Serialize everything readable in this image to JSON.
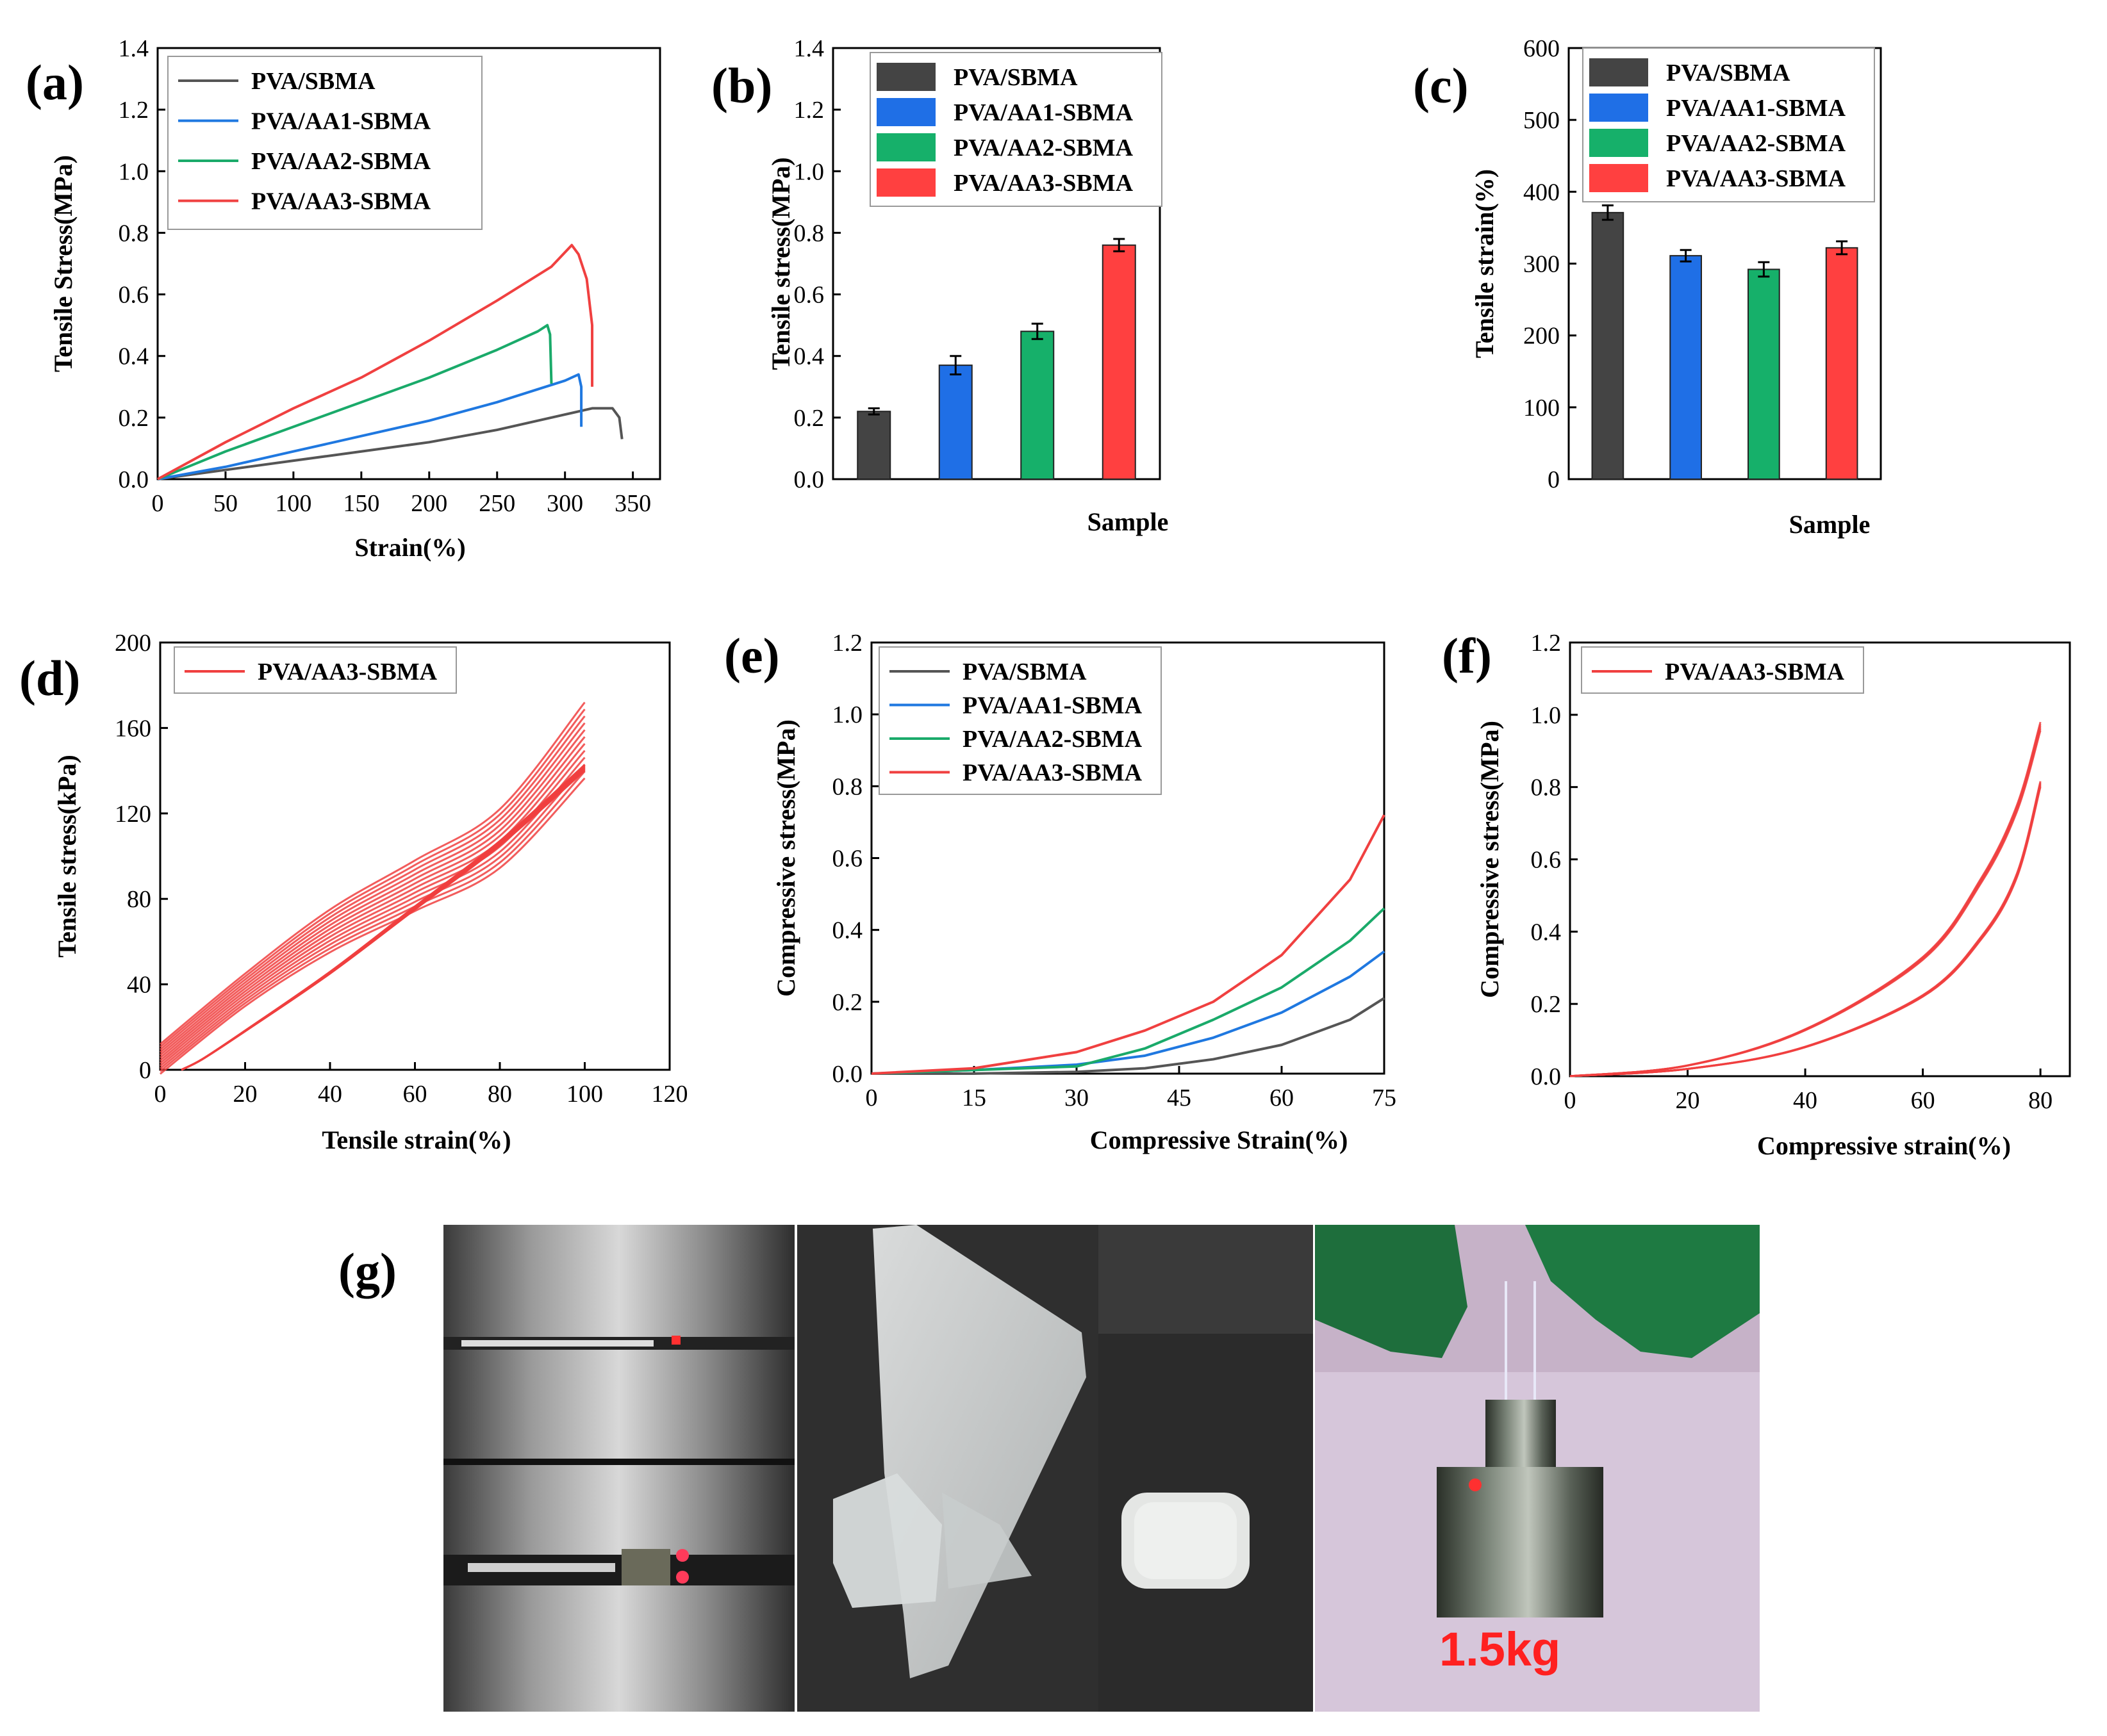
{
  "colors": {
    "black": "#555555",
    "blue": "#1f78e0",
    "green": "#1aaa6a",
    "red": "#f04040",
    "bar_black": "#444444",
    "bar_blue": "#1f6fe6",
    "bar_green": "#16b06a",
    "bar_red": "#ff4040"
  },
  "series_names": [
    "PVA/SBMA",
    "PVA/AA1-SBMA",
    "PVA/AA2-SBMA",
    "PVA/AA3-SBMA"
  ],
  "chart_data": [
    {
      "id": "a",
      "panel_label": "(a)",
      "type": "line",
      "xlabel": "Strain(%)",
      "ylabel": "Tensile Stress(MPa)",
      "xlim": [
        0,
        370
      ],
      "ylim": [
        0,
        1.4
      ],
      "xticks": [
        "0",
        "50",
        "100",
        "150",
        "200",
        "250",
        "300",
        "350"
      ],
      "yticks": [
        "0.0",
        "0.2",
        "0.4",
        "0.6",
        "0.8",
        "1.0",
        "1.2",
        "1.4"
      ],
      "legend": [
        "PVA/SBMA",
        "PVA/AA1-SBMA",
        "PVA/AA2-SBMA",
        "PVA/AA3-SBMA"
      ],
      "series": [
        {
          "name": "PVA/SBMA",
          "x": [
            0,
            50,
            100,
            150,
            200,
            250,
            300,
            320,
            335,
            340,
            342
          ],
          "y": [
            0,
            0.03,
            0.06,
            0.09,
            0.12,
            0.16,
            0.21,
            0.23,
            0.23,
            0.2,
            0.13
          ]
        },
        {
          "name": "PVA/AA1-SBMA",
          "x": [
            0,
            50,
            100,
            150,
            200,
            250,
            300,
            310,
            312,
            312
          ],
          "y": [
            0,
            0.04,
            0.09,
            0.14,
            0.19,
            0.25,
            0.32,
            0.34,
            0.3,
            0.17
          ]
        },
        {
          "name": "PVA/AA2-SBMA",
          "x": [
            0,
            50,
            100,
            150,
            200,
            250,
            280,
            287,
            289,
            290
          ],
          "y": [
            0,
            0.09,
            0.17,
            0.25,
            0.33,
            0.42,
            0.48,
            0.5,
            0.47,
            0.31
          ]
        },
        {
          "name": "PVA/AA3-SBMA",
          "x": [
            0,
            50,
            100,
            150,
            200,
            250,
            290,
            305,
            310,
            316,
            320,
            320
          ],
          "y": [
            0,
            0.12,
            0.23,
            0.33,
            0.45,
            0.58,
            0.69,
            0.76,
            0.73,
            0.65,
            0.5,
            0.3
          ]
        }
      ]
    },
    {
      "id": "b",
      "panel_label": "(b)",
      "type": "bar",
      "xlabel": "Sample",
      "ylabel": "Tensile stress(MPa)",
      "ylim": [
        0,
        1.4
      ],
      "yticks": [
        "0.0",
        "0.2",
        "0.4",
        "0.6",
        "0.8",
        "1.0",
        "1.2",
        "1.4"
      ],
      "categories": [
        "PVA/SBMA",
        "PVA/AA1-SBMA",
        "PVA/AA2-SBMA",
        "PVA/AA3-SBMA"
      ],
      "values": [
        0.22,
        0.37,
        0.48,
        0.76
      ],
      "errors": [
        0.01,
        0.03,
        0.025,
        0.02
      ]
    },
    {
      "id": "c",
      "panel_label": "(c)",
      "type": "bar",
      "xlabel": "Sample",
      "ylabel": "Tensile strain(%)",
      "ylim": [
        0,
        600
      ],
      "yticks": [
        "0",
        "100",
        "200",
        "300",
        "400",
        "500",
        "600"
      ],
      "categories": [
        "PVA/SBMA",
        "PVA/AA1-SBMA",
        "PVA/AA2-SBMA",
        "PVA/AA3-SBMA"
      ],
      "values": [
        371,
        311,
        292,
        322
      ],
      "errors": [
        10,
        8,
        10,
        9
      ]
    },
    {
      "id": "d",
      "panel_label": "(d)",
      "type": "line",
      "xlabel": "Tensile strain(%)",
      "ylabel": "Tensile stress(kPa)",
      "xlim": [
        0,
        120
      ],
      "ylim": [
        0,
        200
      ],
      "xticks": [
        "0",
        "20",
        "40",
        "60",
        "80",
        "100",
        "120"
      ],
      "yticks": [
        "0",
        "40",
        "80",
        "120",
        "160",
        "200"
      ],
      "legend": [
        "PVA/AA3-SBMA"
      ],
      "series": [
        {
          "name": "PVA/AA3-SBMA",
          "loading": {
            "x": [
              0,
              20,
              40,
              60,
              80,
              100
            ],
            "y": [
              12,
              45,
              75,
              98,
              122,
              172
            ]
          },
          "unloading": {
            "x": [
              100,
              80,
              60,
              40,
              20,
              10,
              5
            ],
            "y": [
              140,
              105,
              75,
              45,
              18,
              5,
              0
            ]
          },
          "cycles": 12
        }
      ]
    },
    {
      "id": "e",
      "panel_label": "(e)",
      "type": "line",
      "xlabel": "Compressive Strain(%)",
      "ylabel": "Compressive stress(MPa)",
      "xlim": [
        0,
        75
      ],
      "ylim": [
        0,
        1.2
      ],
      "xticks": [
        "0",
        "15",
        "30",
        "45",
        "60",
        "75"
      ],
      "yticks": [
        "0.0",
        "0.2",
        "0.4",
        "0.6",
        "0.8",
        "1.0",
        "1.2"
      ],
      "legend": [
        "PVA/SBMA",
        "PVA/AA1-SBMA",
        "PVA/AA2-SBMA",
        "PVA/AA3-SBMA"
      ],
      "series": [
        {
          "name": "PVA/SBMA",
          "x": [
            0,
            15,
            30,
            40,
            50,
            60,
            70,
            75
          ],
          "y": [
            0,
            0,
            0.005,
            0.015,
            0.04,
            0.08,
            0.15,
            0.21
          ]
        },
        {
          "name": "PVA/AA1-SBMA",
          "x": [
            0,
            15,
            30,
            40,
            50,
            60,
            70,
            75
          ],
          "y": [
            0,
            0.01,
            0.025,
            0.05,
            0.1,
            0.17,
            0.27,
            0.34
          ]
        },
        {
          "name": "PVA/AA2-SBMA",
          "x": [
            0,
            15,
            30,
            40,
            50,
            60,
            70,
            75
          ],
          "y": [
            0,
            0.01,
            0.02,
            0.07,
            0.15,
            0.24,
            0.37,
            0.46
          ]
        },
        {
          "name": "PVA/AA3-SBMA",
          "x": [
            0,
            15,
            30,
            40,
            50,
            60,
            70,
            75
          ],
          "y": [
            0,
            0.015,
            0.06,
            0.12,
            0.2,
            0.33,
            0.54,
            0.72
          ]
        }
      ]
    },
    {
      "id": "f",
      "panel_label": "(f)",
      "type": "line",
      "xlabel": "Compressive strain(%)",
      "ylabel": "Compressive stress(MPa)",
      "xlim": [
        0,
        85
      ],
      "ylim": [
        0,
        1.2
      ],
      "xticks": [
        "0",
        "20",
        "40",
        "60",
        "80"
      ],
      "yticks": [
        "0.0",
        "0.2",
        "0.4",
        "0.6",
        "0.8",
        "1.0",
        "1.2"
      ],
      "legend": [
        "PVA/AA3-SBMA"
      ],
      "series": [
        {
          "name": "PVA/AA3-SBMA",
          "loading": {
            "x": [
              0,
              20,
              40,
              60,
              70,
              76,
              80
            ],
            "y": [
              0,
              0.03,
              0.13,
              0.33,
              0.55,
              0.75,
              0.98
            ]
          },
          "unloading": {
            "x": [
              80,
              76,
              70,
              60,
              40,
              20,
              0
            ],
            "y": [
              0.8,
              0.55,
              0.38,
              0.22,
              0.08,
              0.02,
              0
            ]
          },
          "cycles": 5
        }
      ]
    }
  ],
  "photos": {
    "panel_label": "(g)",
    "weight_label": "1.5kg"
  }
}
